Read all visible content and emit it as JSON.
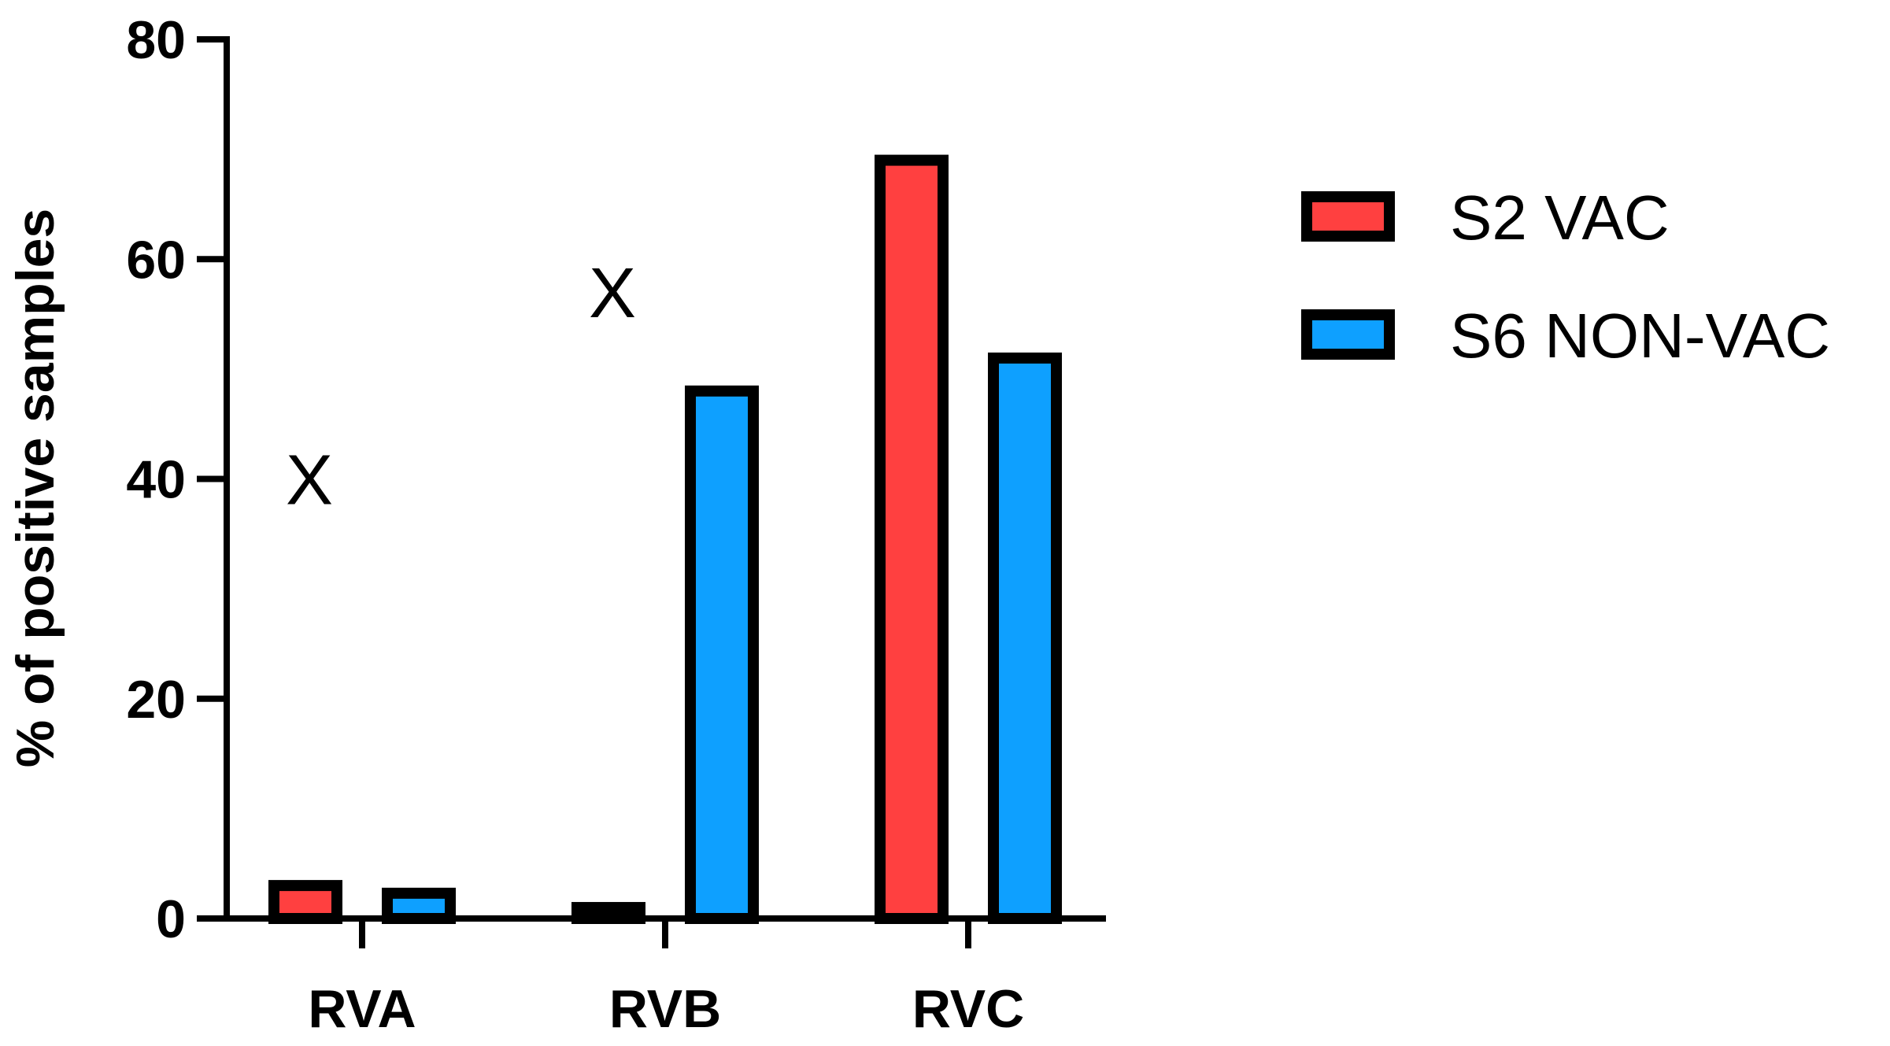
{
  "chart_data": {
    "type": "bar",
    "categories": [
      "RVA",
      "RVB",
      "RVC"
    ],
    "series": [
      {
        "name": "S2 VAC",
        "values": [
          3,
          1,
          69
        ],
        "color": "#ff4040"
      },
      {
        "name": "S6 NON-VAC",
        "values": [
          2.3,
          48,
          51
        ],
        "color": "#0ea0ff"
      }
    ],
    "ylabel": "% of positive samples",
    "xlabel": "",
    "ylim": [
      0,
      80
    ],
    "yticks": [
      0,
      20,
      40,
      60,
      80
    ],
    "annotations": [
      {
        "text": "X",
        "category": "RVA",
        "y": 40
      },
      {
        "text": "X",
        "category": "RVB",
        "y": 57
      }
    ],
    "legend_position": "right",
    "grid": false
  }
}
